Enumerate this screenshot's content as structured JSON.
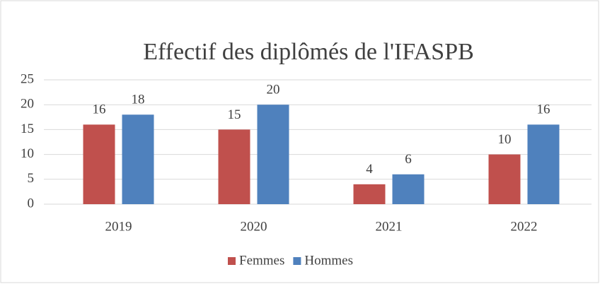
{
  "chart_data": {
    "type": "bar",
    "title": "Effectif des diplômés de l'IFASPB",
    "categories": [
      "2019",
      "2020",
      "2021",
      "2022"
    ],
    "series": [
      {
        "name": "Femmes",
        "color": "#c0504d",
        "values": [
          16,
          15,
          4,
          10
        ]
      },
      {
        "name": "Hommes",
        "color": "#4f81bd",
        "values": [
          18,
          20,
          6,
          16
        ]
      }
    ],
    "ylim": [
      0,
      25
    ],
    "yticks": [
      0,
      5,
      10,
      15,
      20,
      25
    ],
    "grid": true,
    "legend": "bottom"
  }
}
